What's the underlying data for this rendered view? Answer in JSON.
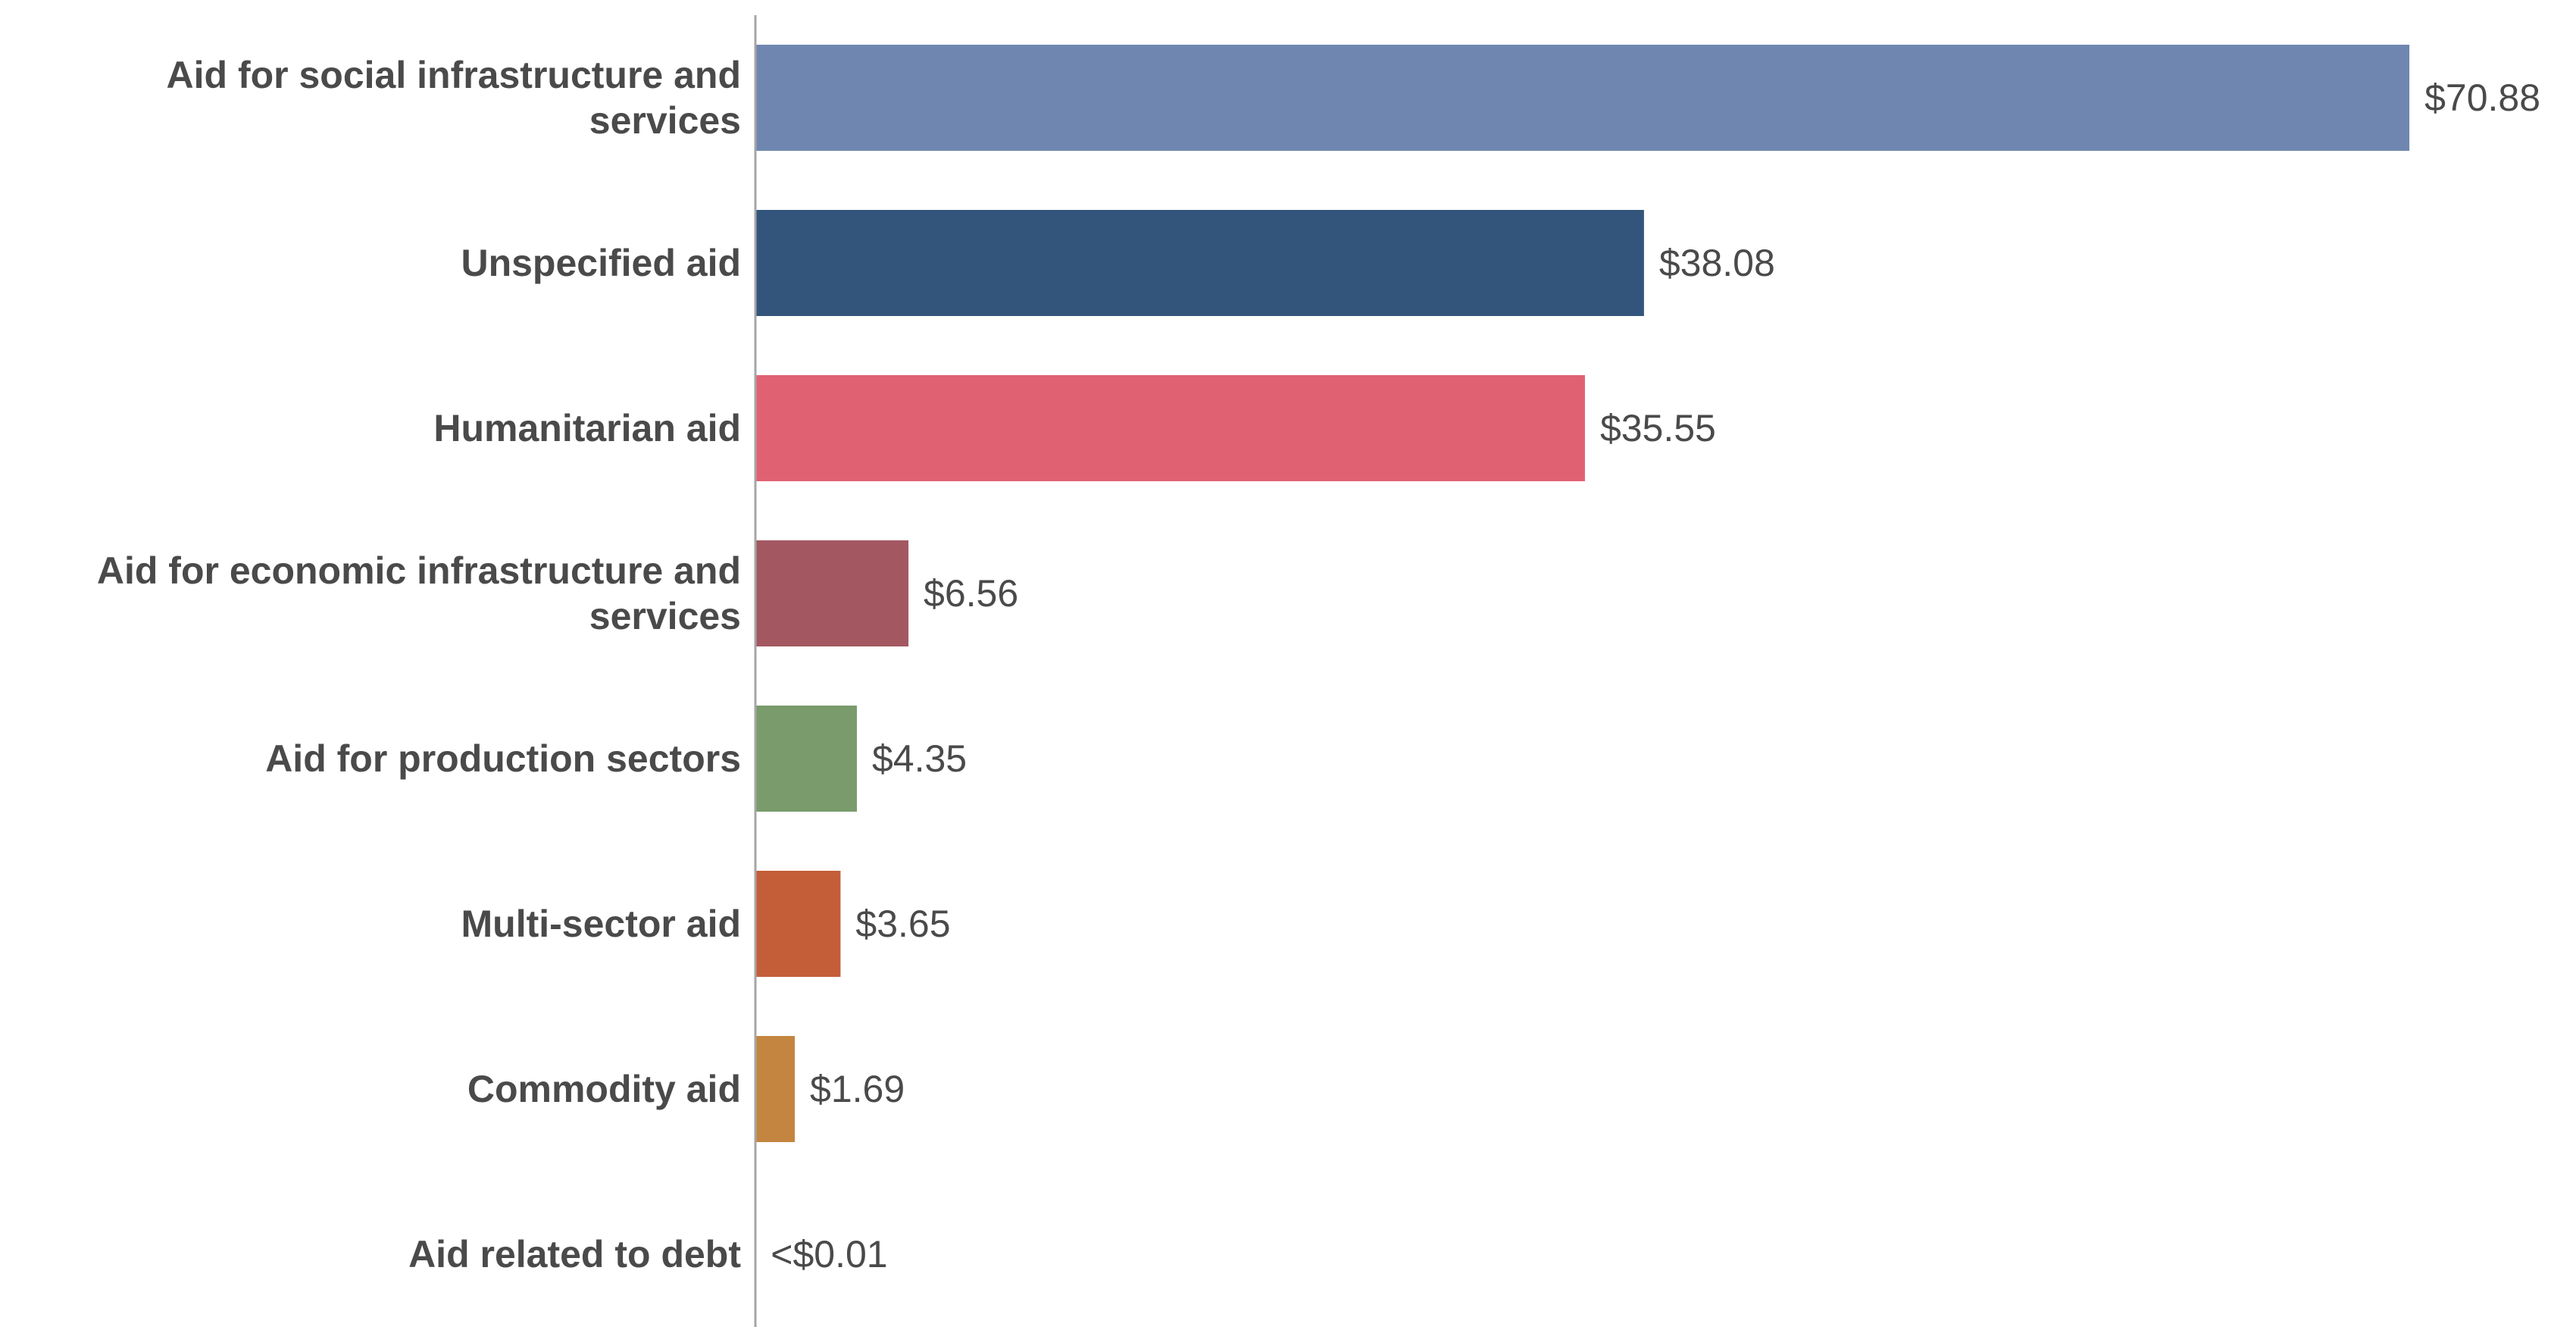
{
  "chart_data": {
    "type": "bar",
    "orientation": "horizontal",
    "title": "",
    "xlabel": "",
    "ylabel": "",
    "categories": [
      [
        "Aid for social infrastructure and",
        "services"
      ],
      [
        "Unspecified aid"
      ],
      [
        "Humanitarian aid"
      ],
      [
        "Aid for economic infrastructure and",
        "services"
      ],
      [
        "Aid for production sectors"
      ],
      [
        "Multi-sector aid"
      ],
      [
        "Commodity aid"
      ],
      [
        "Aid related to debt"
      ]
    ],
    "values": [
      70.88,
      38.08,
      35.55,
      6.56,
      4.35,
      3.65,
      1.69,
      0.01
    ],
    "value_labels": [
      "$70.88",
      "$38.08",
      "$35.55",
      "$6.56",
      "$4.35",
      "$3.65",
      "$1.69",
      "<$0.01"
    ],
    "colors": [
      "#6f87b0",
      "#33557c",
      "#e06272",
      "#a35861",
      "#7a9b6b",
      "#c45e39",
      "#c48540",
      "#c48540"
    ],
    "xlim": [
      0,
      75
    ],
    "grid": false,
    "legend": "none"
  }
}
